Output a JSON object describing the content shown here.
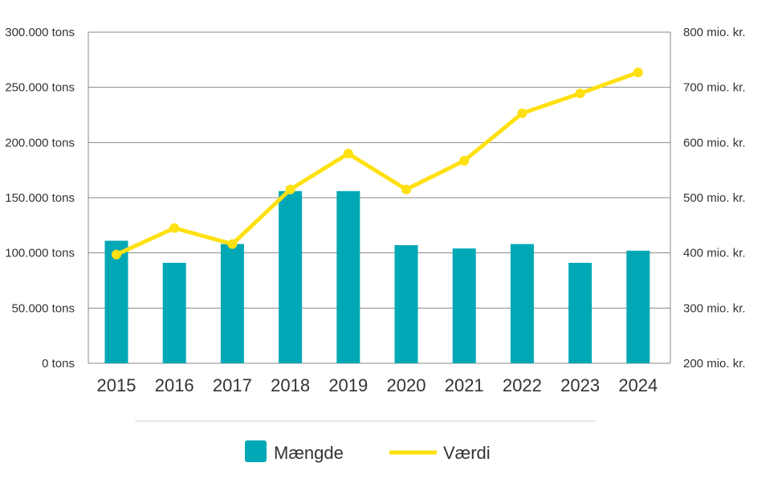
{
  "chart_data": {
    "type": "bar",
    "categories": [
      "2015",
      "2016",
      "2017",
      "2018",
      "2019",
      "2020",
      "2021",
      "2022",
      "2023",
      "2024"
    ],
    "series": [
      {
        "name": "Mængde",
        "type": "bar",
        "axis": "left",
        "color": "#00A8B5",
        "values": [
          111000,
          91000,
          108000,
          156000,
          156000,
          107000,
          104000,
          108000,
          91000,
          102000
        ]
      },
      {
        "name": "Værdi",
        "type": "line",
        "axis": "right",
        "color": "#FFE011",
        "values": [
          397,
          445,
          416,
          515,
          580,
          515,
          567,
          653,
          689,
          727
        ]
      }
    ],
    "y_left": {
      "lim": [
        0,
        300000
      ],
      "ticks": [
        0,
        50000,
        100000,
        150000,
        200000,
        250000,
        300000
      ],
      "tick_labels": [
        "0 tons",
        "50.000 tons",
        "100.000 tons",
        "150.000 tons",
        "200.000 tons",
        "250.000 tons",
        "300.000 tons"
      ]
    },
    "y_right": {
      "lim": [
        200,
        800
      ],
      "ticks": [
        200,
        300,
        400,
        500,
        600,
        700,
        800
      ],
      "tick_labels": [
        "200 mio. kr.",
        "300 mio. kr.",
        "400 mio. kr.",
        "500 mio. kr.",
        "600 mio. kr.",
        "700 mio. kr.",
        "800 mio. kr."
      ]
    },
    "grid": true,
    "legend": "bottom",
    "colors": {
      "grid": "#888888",
      "divider": "#E6E6E6",
      "text": "#333333"
    }
  }
}
